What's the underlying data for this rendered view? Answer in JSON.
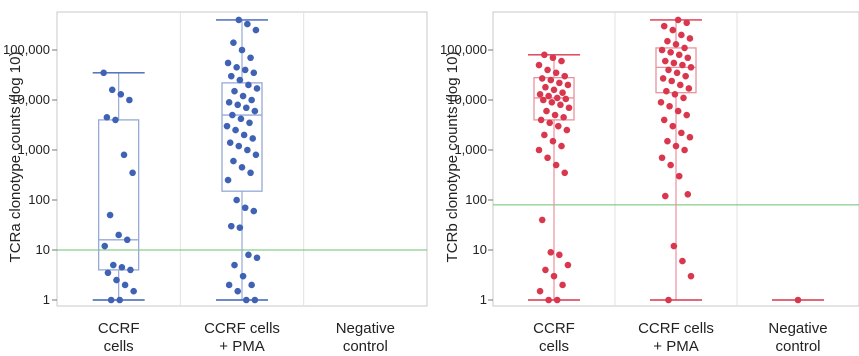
{
  "chart_data": [
    {
      "type": "scatter",
      "subtype": "box-plot-with-jittered-points",
      "ylabel": "TCRa clonotype counts (log 10)",
      "yscale": "log10",
      "ylim": [
        1,
        400000
      ],
      "yticks": [
        "1",
        "10",
        "100",
        "1,000",
        "10,000",
        "100,000"
      ],
      "categories": [
        [
          "CCRF",
          "cells"
        ],
        [
          "CCRF cells",
          "+ PMA"
        ],
        [
          "Negative",
          "control"
        ]
      ],
      "grid": false,
      "reference_line": {
        "y": 10,
        "color": "#6cc070"
      },
      "color": "#3f62b5",
      "groups": [
        {
          "box": {
            "min": 1,
            "q1": 4,
            "median": 16,
            "q3": 4000,
            "max": 35000,
            "whisker_caps": [
              1,
              35000
            ]
          },
          "points": [
            35000,
            16000,
            13000,
            10000,
            4500,
            4000,
            800,
            350,
            50,
            20,
            16,
            12,
            5,
            4.5,
            4,
            3.5,
            2.5,
            2,
            1.5,
            1,
            1
          ]
        },
        {
          "box": {
            "min": 1,
            "q1": 150,
            "median": 5000,
            "q3": 22000,
            "max": 400000,
            "whisker_caps": [
              1,
              400000
            ]
          },
          "points": [
            400000,
            330000,
            250000,
            140000,
            100000,
            70000,
            55000,
            45000,
            40000,
            35000,
            30000,
            25000,
            20000,
            17000,
            15000,
            12000,
            10000,
            9000,
            8000,
            7000,
            6000,
            5000,
            4200,
            3500,
            3000,
            2500,
            2000,
            1700,
            1400,
            1200,
            1000,
            800,
            600,
            450,
            350,
            250,
            100,
            70,
            60,
            30,
            28,
            8,
            7,
            5,
            3,
            2,
            2,
            1.5,
            1,
            1
          ]
        },
        {
          "box": null,
          "points": []
        }
      ]
    },
    {
      "type": "scatter",
      "subtype": "box-plot-with-jittered-points",
      "ylabel": "TCRb clonotype counts (log 10)",
      "yscale": "log10",
      "ylim": [
        1,
        400000
      ],
      "yticks": [
        "1",
        "10",
        "100",
        "1,000",
        "10,000",
        "100,000"
      ],
      "categories": [
        [
          "CCRF",
          "cells"
        ],
        [
          "CCRF cells",
          "+ PMA"
        ],
        [
          "Negative",
          "control"
        ]
      ],
      "grid": false,
      "reference_line": {
        "y": 80,
        "color": "#6cc070"
      },
      "color": "#d9374d",
      "groups": [
        {
          "box": {
            "min": 1,
            "q1": 4000,
            "median": 11000,
            "q3": 28000,
            "max": 80000,
            "whisker_caps": [
              1,
              80000
            ]
          },
          "points": [
            80000,
            70000,
            60000,
            50000,
            40000,
            35000,
            30000,
            27000,
            25000,
            22000,
            20000,
            18000,
            16000,
            14000,
            13000,
            12000,
            11000,
            10500,
            10000,
            9000,
            8000,
            7000,
            6000,
            5000,
            4500,
            4000,
            3500,
            3000,
            2500,
            2000,
            1500,
            1200,
            1000,
            700,
            500,
            350,
            40,
            9,
            8,
            5,
            4,
            3,
            2,
            1.5,
            1,
            1
          ]
        },
        {
          "box": {
            "min": 1,
            "q1": 14000,
            "median": 45000,
            "q3": 110000,
            "max": 400000,
            "whisker_caps": [
              1,
              400000
            ]
          },
          "points": [
            400000,
            350000,
            300000,
            250000,
            200000,
            170000,
            150000,
            130000,
            110000,
            100000,
            90000,
            80000,
            70000,
            60000,
            55000,
            50000,
            45000,
            40000,
            35000,
            30000,
            27000,
            24000,
            20000,
            17000,
            15000,
            13000,
            11000,
            9000,
            7500,
            6000,
            5000,
            4000,
            3000,
            2200,
            1800,
            1500,
            1200,
            1000,
            700,
            500,
            300,
            130,
            120,
            12,
            6,
            3,
            1
          ]
        },
        {
          "box": {
            "min": 1,
            "q1": 1,
            "median": 1,
            "q3": 1,
            "max": 1,
            "whisker_caps": [
              1,
              1
            ],
            "flat": true
          },
          "points": [
            1
          ]
        }
      ]
    }
  ]
}
